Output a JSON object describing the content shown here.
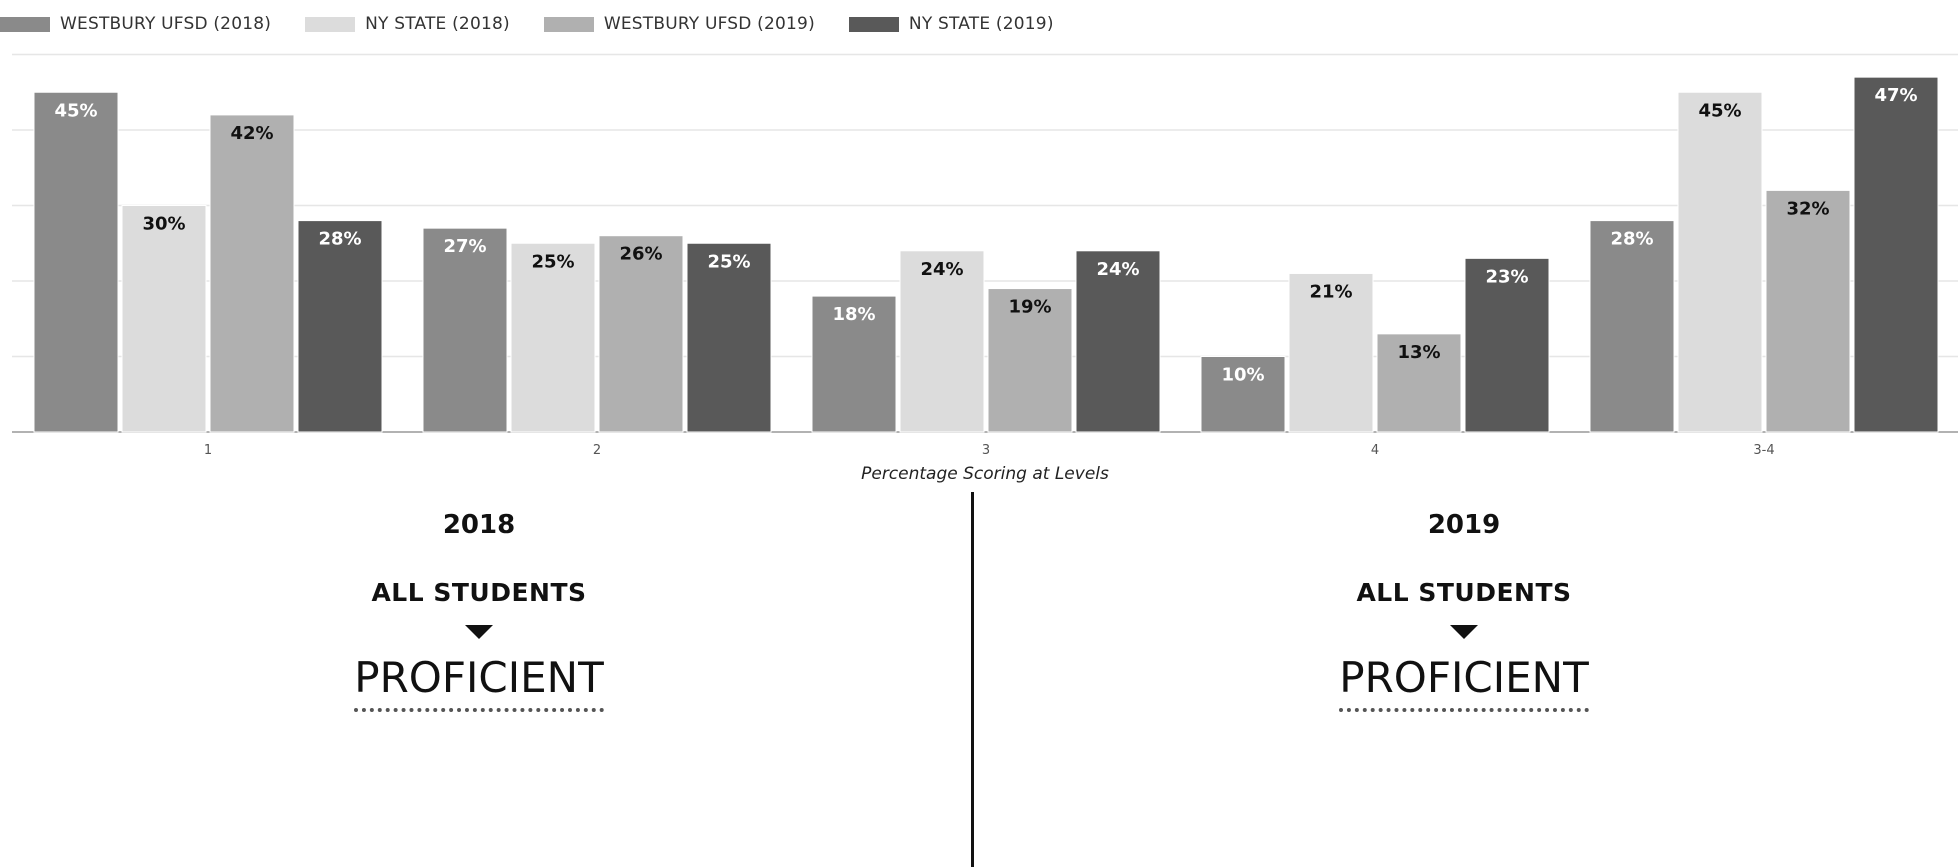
{
  "legend": [
    {
      "label": "WESTBURY UFSD (2018)",
      "color": "#8a8a8a"
    },
    {
      "label": "NY STATE (2018)",
      "color": "#dcdcdc"
    },
    {
      "label": "WESTBURY UFSD (2019)",
      "color": "#b0b0b0"
    },
    {
      "label": "NY STATE (2019)",
      "color": "#595959"
    }
  ],
  "chart_data": {
    "type": "bar",
    "categories": [
      "1",
      "2",
      "3",
      "4",
      "3-4"
    ],
    "series": [
      {
        "name": "WESTBURY UFSD (2018)",
        "color": "#8a8a8a",
        "label_color": "#ffffff",
        "values": [
          45,
          27,
          18,
          10,
          28
        ]
      },
      {
        "name": "NY STATE (2018)",
        "color": "#dcdcdc",
        "label_color": "#111111",
        "values": [
          30,
          25,
          24,
          21,
          45
        ]
      },
      {
        "name": "WESTBURY UFSD (2019)",
        "color": "#b0b0b0",
        "label_color": "#111111",
        "values": [
          42,
          26,
          19,
          13,
          32
        ]
      },
      {
        "name": "NY STATE (2019)",
        "color": "#595959",
        "label_color": "#ffffff",
        "values": [
          28,
          25,
          24,
          23,
          47
        ]
      }
    ],
    "xlabel": "Percentage Scoring at Levels",
    "ylabel": "",
    "ylim": [
      0,
      50
    ],
    "grid": true,
    "legend_position": "top-left"
  },
  "panels": [
    {
      "year": "2018",
      "group": "ALL STUDENTS",
      "status": "PROFICIENT"
    },
    {
      "year": "2019",
      "group": "ALL STUDENTS",
      "status": "PROFICIENT"
    }
  ]
}
